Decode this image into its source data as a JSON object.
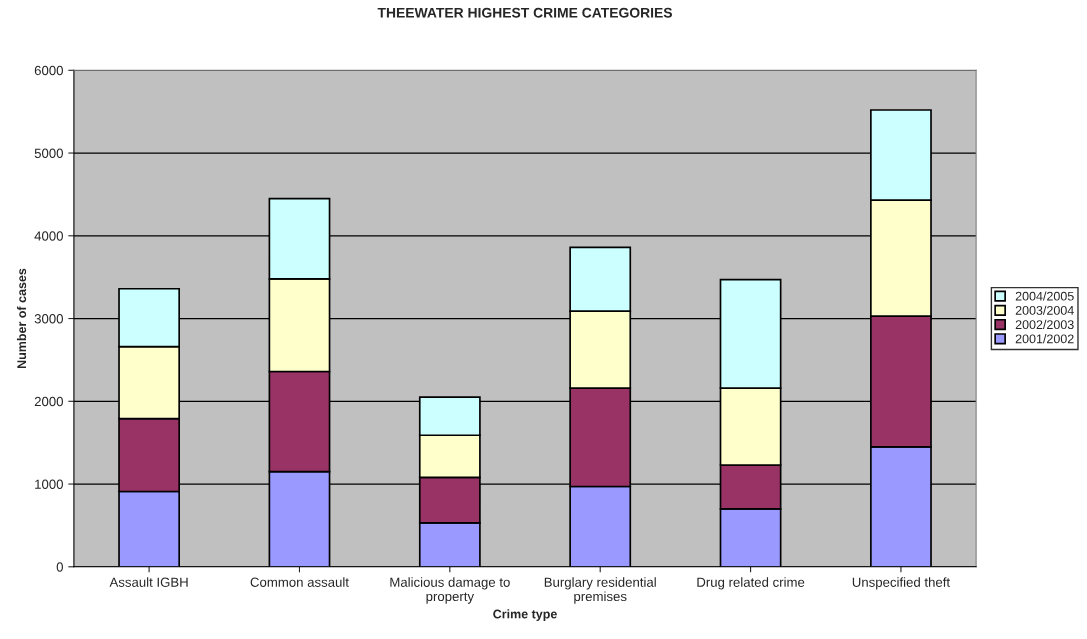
{
  "chart_data": {
    "type": "bar",
    "title": "THEEWATER HIGHEST CRIME CATEGORIES",
    "xlabel": "Crime type",
    "ylabel": "Number of cases",
    "categories": [
      "Assault IGBH",
      "Common assault",
      "Malicious damage to\nproperty",
      "Burglary residential\npremises",
      "Drug related crime",
      "Unspecified theft"
    ],
    "series": [
      {
        "name": "2001/2002",
        "color": "#9999ff",
        "values": [
          910,
          1150,
          530,
          970,
          700,
          1450
        ]
      },
      {
        "name": "2002/2003",
        "color": "#993366",
        "values": [
          880,
          1210,
          550,
          1190,
          530,
          1580
        ]
      },
      {
        "name": "2003/2004",
        "color": "#ffffcc",
        "values": [
          870,
          1120,
          510,
          930,
          930,
          1400
        ]
      },
      {
        "name": "2004/2005",
        "color": "#ccffff",
        "values": [
          700,
          970,
          460,
          770,
          1310,
          1090
        ]
      }
    ],
    "stacked": true,
    "ylim": [
      0,
      6000
    ],
    "yticks": [
      0,
      1000,
      2000,
      3000,
      4000,
      5000,
      6000
    ],
    "grid": "y",
    "legend": "right"
  }
}
